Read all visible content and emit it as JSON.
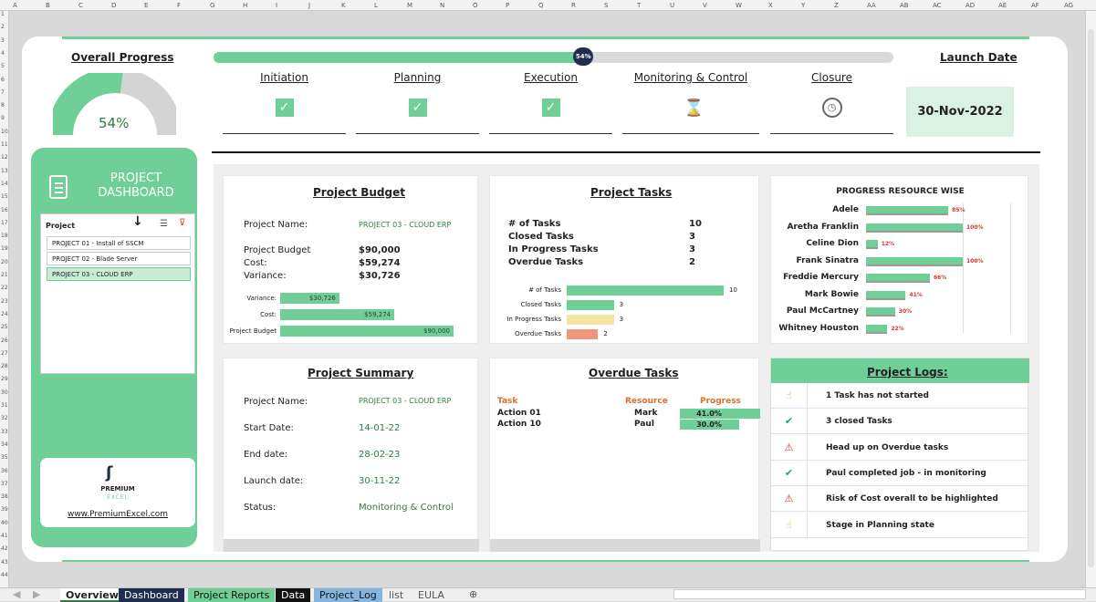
{
  "sheet": {
    "columns": [
      "A",
      "B",
      "C",
      "D",
      "E",
      "F",
      "G",
      "H",
      "I",
      "J",
      "K",
      "L",
      "M",
      "N",
      "O",
      "P",
      "Q",
      "R",
      "S",
      "T",
      "U",
      "V",
      "W",
      "X",
      "Y",
      "Z",
      "AA",
      "AB",
      "AC",
      "AD",
      "AE",
      "AF",
      "AG"
    ],
    "rows": [
      "1",
      "2",
      "3",
      "4",
      "5",
      "6",
      "7",
      "8",
      "9",
      "10",
      "11",
      "12",
      "13",
      "14",
      "15",
      "16",
      "17",
      "18",
      "19",
      "20",
      "21",
      "22",
      "23",
      "24",
      "25",
      "26",
      "27",
      "28",
      "29",
      "30",
      "31",
      "32",
      "33",
      "34",
      "35",
      "36",
      "37",
      "38",
      "39",
      "40",
      "41",
      "42",
      "43",
      "44"
    ]
  },
  "overall": {
    "title": "Overall Progress",
    "value": "54%",
    "fraction": 0.54
  },
  "timeline": {
    "badge": "54%",
    "fraction": 0.54
  },
  "stages": [
    {
      "label": "Initiation",
      "icon": "check-icon"
    },
    {
      "label": "Planning",
      "icon": "check-icon"
    },
    {
      "label": "Execution",
      "icon": "check-icon"
    },
    {
      "label": "Monitoring & Control",
      "icon": "hourglass-icon"
    },
    {
      "label": "Closure",
      "icon": "clock-icon"
    }
  ],
  "launch": {
    "title": "Launch Date",
    "value": "30-Nov-2022"
  },
  "sidebar": {
    "title_line1": "PROJECT",
    "title_line2": "DASHBOARD",
    "slicer_title": "Project",
    "projects": [
      "PROJECT 01 - Install of SSCM",
      "PROJECT 02 - Blade Server",
      "PROJECT 03 - CLOUD ERP"
    ],
    "selected_index": 2,
    "logo_text": "PREMIUM",
    "logo_sub": "EXCEL",
    "website": "www.PremiumExcel.com"
  },
  "budget": {
    "title": "Project Budget",
    "name_label": "Project Name:",
    "name_value": "PROJECT 03 - CLOUD ERP",
    "budget_label": "Project Budget",
    "budget_value": "$90,000",
    "cost_label": "Cost:",
    "cost_value": "$59,274",
    "variance_label": "Variance:",
    "variance_value": "$30,726",
    "chart": [
      {
        "label": "Variance:",
        "value": 30726,
        "text": "$30,726"
      },
      {
        "label": "Cost:",
        "value": 59274,
        "text": "$59,274"
      },
      {
        "label": "Project Budget",
        "value": 90000,
        "text": "$90,000"
      }
    ]
  },
  "tasks": {
    "title": "Project Tasks",
    "rows": [
      {
        "label": "# of Tasks",
        "value": "10"
      },
      {
        "label": "Closed Tasks",
        "value": "3"
      },
      {
        "label": "In Progress Tasks",
        "value": "3"
      },
      {
        "label": "Overdue Tasks",
        "value": "2"
      }
    ],
    "chart": [
      {
        "label": "# of Tasks",
        "value": 10,
        "color": "#6fcf97"
      },
      {
        "label": "Closed Tasks",
        "value": 3,
        "color": "#6fcf97"
      },
      {
        "label": "In Progress Tasks",
        "value": 3,
        "color": "#f4e4a1"
      },
      {
        "label": "Overdue Tasks",
        "value": 2,
        "color": "#f0967a"
      }
    ]
  },
  "resource": {
    "title": "PROGRESS RESOURCE WISE",
    "people": [
      {
        "name": "Adele",
        "pct": 85,
        "label": "85%"
      },
      {
        "name": "Aretha Franklin",
        "pct": 100,
        "label": "100%"
      },
      {
        "name": "Celine Dion",
        "pct": 12,
        "label": "12%"
      },
      {
        "name": "Frank Sinatra",
        "pct": 100,
        "label": "100%"
      },
      {
        "name": "Freddie Mercury",
        "pct": 66,
        "label": "66%"
      },
      {
        "name": "Mark Bowie",
        "pct": 41,
        "label": "41%"
      },
      {
        "name": "Paul McCartney",
        "pct": 30,
        "label": "30%"
      },
      {
        "name": "Whitney Houston",
        "pct": 22,
        "label": "22%"
      }
    ]
  },
  "summary": {
    "title": "Project Summary",
    "rows": [
      {
        "label": "Project Name:",
        "value": "PROJECT 03 - CLOUD ERP"
      },
      {
        "label": "Start Date:",
        "value": "14-01-22"
      },
      {
        "label": "End date:",
        "value": "28-02-23"
      },
      {
        "label": "Launch date:",
        "value": "30-11-22"
      },
      {
        "label": "Status:",
        "value": "Monitoring & Control"
      }
    ]
  },
  "overdue": {
    "title": "Overdue Tasks",
    "headers": [
      "Task",
      "Resource",
      "Progress"
    ],
    "rows": [
      {
        "task": "Action 01",
        "resource": "Mark",
        "progress": "41.0%",
        "pct": 41
      },
      {
        "task": "Action 10",
        "resource": "Paul",
        "progress": "30.0%",
        "pct": 30
      }
    ]
  },
  "logs": {
    "title": "Project Logs:",
    "items": [
      {
        "icon": "hand-icon",
        "text": "1 Task has not started"
      },
      {
        "icon": "check-icon",
        "text": "3 closed Tasks"
      },
      {
        "icon": "warning-icon",
        "text": "Head up on Overdue tasks"
      },
      {
        "icon": "check-icon",
        "text": "Paul completed job - in monitoring"
      },
      {
        "icon": "warning-icon",
        "text": "Risk of Cost overall to be highlighted"
      },
      {
        "icon": "hand-icon",
        "text": "Stage in Planning state"
      }
    ]
  },
  "tabs": [
    "Overview",
    "Dashboard",
    "Project Reports",
    "Data",
    "Project_Log",
    "list",
    "EULA"
  ],
  "colors": {
    "accent": "#6fcf97",
    "sidebar": "#6fcf97",
    "navy": "#1f2d50"
  }
}
